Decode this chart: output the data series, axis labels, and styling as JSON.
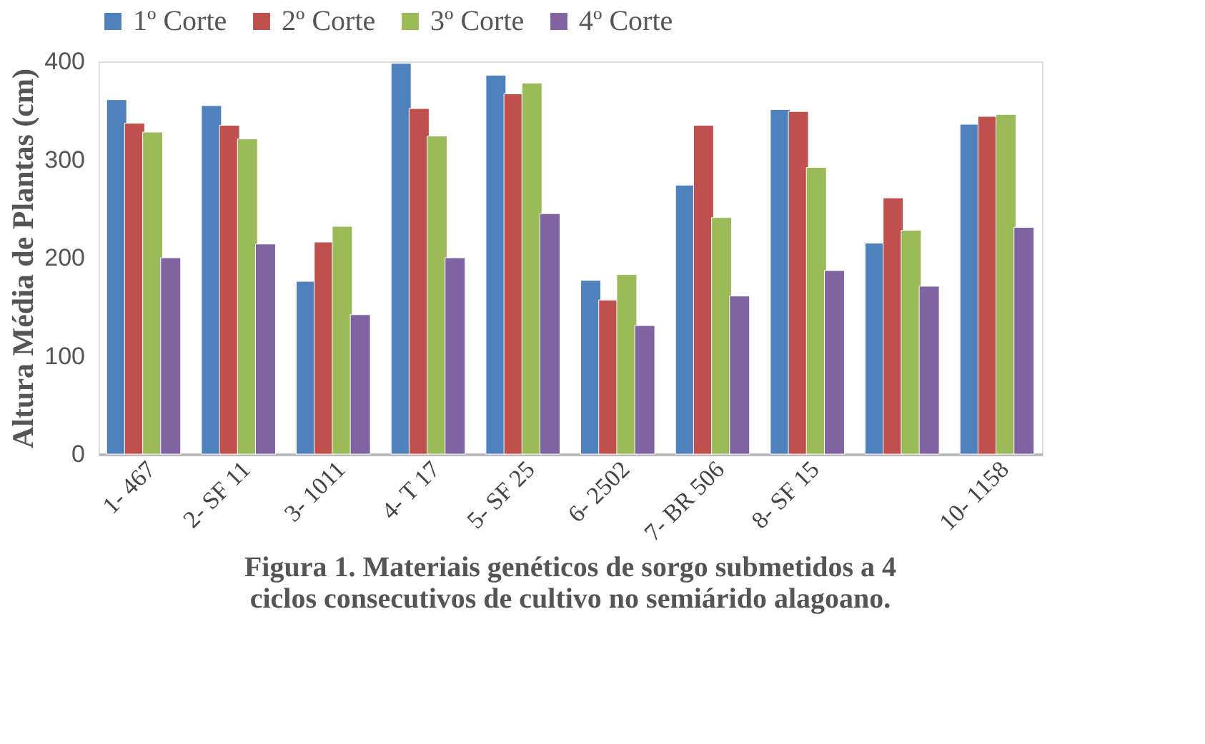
{
  "chart_data": {
    "type": "bar",
    "ylabel": "Altura Média de Plantas (cm)",
    "categories": [
      "1- 467",
      "2- SF 11",
      "3- 1011",
      "4- T 17",
      "5- SF 25",
      "6- 2502",
      "7- BR 506",
      "8- SF 15",
      null,
      "10- 1158"
    ],
    "series": [
      {
        "name": "1º Corte",
        "color": "#4f81bd",
        "values": [
          361,
          355,
          176,
          398,
          386,
          177,
          274,
          351,
          215,
          336
        ]
      },
      {
        "name": "2º Corte",
        "color": "#c0504d",
        "values": [
          337,
          335,
          216,
          352,
          367,
          157,
          335,
          349,
          261,
          344
        ]
      },
      {
        "name": "3º Corte",
        "color": "#9bbb59",
        "values": [
          328,
          321,
          232,
          324,
          378,
          183,
          241,
          292,
          228,
          346
        ]
      },
      {
        "name": "4º Corte",
        "color": "#8064a2",
        "values": [
          200,
          214,
          142,
          200,
          245,
          131,
          161,
          187,
          171,
          231
        ]
      }
    ],
    "ylim": [
      0,
      400
    ],
    "yticks": [
      0,
      100,
      200,
      300,
      400
    ],
    "grid": false,
    "legend": "top",
    "annotations": [
      "Figura 1. Materiais genéticos de sorgo submetidos a 4 ciclos consecutivos de cultivo no semiárido alagoano."
    ]
  }
}
